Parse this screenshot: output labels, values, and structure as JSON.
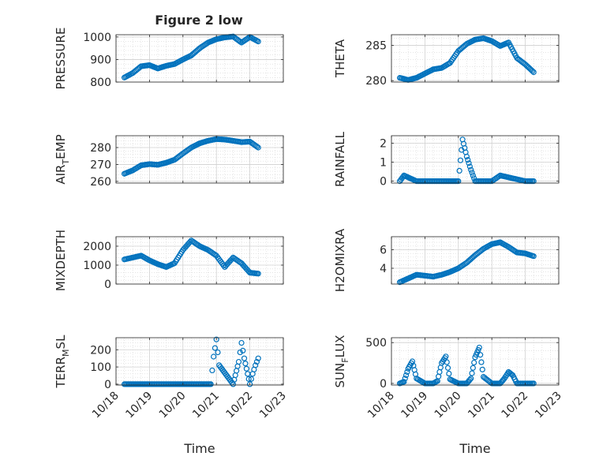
{
  "figure_title": "Figure 2 low",
  "chart_data": [
    {
      "type": "scatter",
      "ylabel": "PRESSURE",
      "ylim": [
        800,
        1010
      ],
      "yticks": [
        800,
        900,
        1000
      ],
      "xlabel": "",
      "grid": true,
      "x": [
        "10/18 6:00",
        "10/18 12:00",
        "10/18 18:00",
        "10/19 0:00",
        "10/19 6:00",
        "10/19 12:00",
        "10/19 18:00",
        "10/20 0:00",
        "10/20 6:00",
        "10/20 12:00",
        "10/20 18:00",
        "10/21 0:00",
        "10/21 6:00",
        "10/21 12:00",
        "10/21 18:00",
        "10/22 0:00",
        "10/22 6:00"
      ],
      "y": [
        820,
        840,
        870,
        875,
        860,
        872,
        880,
        900,
        918,
        950,
        975,
        990,
        998,
        1002,
        975,
        1000,
        980
      ]
    },
    {
      "type": "scatter",
      "ylabel": "THETA",
      "ylim": [
        279.8,
        286.5
      ],
      "yticks": [
        280,
        285
      ],
      "xlabel": "",
      "grid": true,
      "x": [
        "10/18 6:00",
        "10/18 12:00",
        "10/18 18:00",
        "10/19 0:00",
        "10/19 6:00",
        "10/19 12:00",
        "10/19 18:00",
        "10/20 0:00",
        "10/20 6:00",
        "10/20 12:00",
        "10/20 18:00",
        "10/21 0:00",
        "10/21 6:00",
        "10/21 12:00",
        "10/21 18:00",
        "10/22 0:00",
        "10/22 6:00"
      ],
      "y": [
        280.4,
        280.1,
        280.4,
        281.0,
        281.6,
        281.8,
        282.5,
        284.2,
        285.2,
        285.8,
        286.0,
        285.6,
        284.9,
        285.4,
        283.2,
        282.3,
        281.2
      ]
    },
    {
      "type": "scatter",
      "ylabel": "AIR_TEMP",
      "ylim": [
        259,
        287
      ],
      "yticks": [
        260,
        270,
        280
      ],
      "xlabel": "",
      "grid": true,
      "x": [
        "10/18 6:00",
        "10/18 12:00",
        "10/18 18:00",
        "10/19 0:00",
        "10/19 6:00",
        "10/19 12:00",
        "10/19 18:00",
        "10/20 0:00",
        "10/20 6:00",
        "10/20 12:00",
        "10/20 18:00",
        "10/21 0:00",
        "10/21 6:00",
        "10/21 12:00",
        "10/21 18:00",
        "10/22 0:00",
        "10/22 6:00"
      ],
      "y": [
        264.5,
        266.5,
        269.5,
        270.2,
        269.8,
        271.0,
        272.8,
        276.5,
        280.0,
        282.5,
        284.0,
        285.0,
        284.7,
        284.0,
        283.2,
        283.5,
        280.0
      ]
    },
    {
      "type": "scatter",
      "ylabel": "RAINFALL",
      "ylim": [
        -0.1,
        2.4
      ],
      "yticks": [
        0,
        1,
        2
      ],
      "xlabel": "",
      "grid": true,
      "x": [
        "10/18 6:00",
        "10/18 9:00",
        "10/18 18:00",
        "10/19 12:00",
        "10/20 0:00",
        "10/20 3:00",
        "10/20 6:00",
        "10/20 9:00",
        "10/20 12:00",
        "10/21 0:00",
        "10/21 6:00",
        "10/22 0:00",
        "10/22 6:00"
      ],
      "y": [
        0,
        0.3,
        0,
        0,
        0,
        2.2,
        1.3,
        0.6,
        0,
        0,
        0.3,
        0,
        0
      ]
    },
    {
      "type": "scatter",
      "ylabel": "MIXDEPTH",
      "ylim": [
        0,
        2500
      ],
      "yticks": [
        0,
        1000,
        2000
      ],
      "xlabel": "",
      "grid": true,
      "x": [
        "10/18 6:00",
        "10/18 12:00",
        "10/18 18:00",
        "10/19 0:00",
        "10/19 6:00",
        "10/19 12:00",
        "10/19 18:00",
        "10/20 0:00",
        "10/20 6:00",
        "10/20 12:00",
        "10/20 18:00",
        "10/21 0:00",
        "10/21 6:00",
        "10/21 12:00",
        "10/21 18:00",
        "10/22 0:00",
        "10/22 6:00"
      ],
      "y": [
        1300,
        1400,
        1500,
        1250,
        1050,
        900,
        1100,
        1800,
        2300,
        2000,
        1800,
        1500,
        900,
        1400,
        1100,
        600,
        550
      ]
    },
    {
      "type": "scatter",
      "ylabel": "H2OMIXRA",
      "ylim": [
        2.3,
        7.4
      ],
      "yticks": [
        4,
        6
      ],
      "xlabel": "",
      "grid": true,
      "x": [
        "10/18 6:00",
        "10/18 12:00",
        "10/18 18:00",
        "10/19 0:00",
        "10/19 6:00",
        "10/19 12:00",
        "10/19 18:00",
        "10/20 0:00",
        "10/20 6:00",
        "10/20 12:00",
        "10/20 18:00",
        "10/21 0:00",
        "10/21 6:00",
        "10/21 12:00",
        "10/21 18:00",
        "10/22 0:00",
        "10/22 6:00"
      ],
      "y": [
        2.5,
        2.9,
        3.3,
        3.2,
        3.1,
        3.3,
        3.6,
        4.0,
        4.6,
        5.4,
        6.1,
        6.6,
        6.8,
        6.3,
        5.7,
        5.6,
        5.3
      ]
    },
    {
      "type": "scatter",
      "ylabel": "TERR_MSL",
      "ylim": [
        -5,
        270
      ],
      "yticks": [
        0,
        100,
        200
      ],
      "xlabel": "Time",
      "grid": true,
      "x_tick_labels": [
        "10/18",
        "10/19",
        "10/20",
        "10/21",
        "10/22",
        "10/23"
      ],
      "x": [
        "10/18 6:00",
        "10/19 0:00",
        "10/19 12:00",
        "10/20 0:00",
        "10/20 12:00",
        "10/20 20:00",
        "10/20 22:00",
        "10/21 0:00",
        "10/21 2:00",
        "10/21 12:00",
        "10/21 16:00",
        "10/21 18:00",
        "10/21 20:00",
        "10/22 0:00",
        "10/22 2:00",
        "10/22 4:00",
        "10/22 6:00"
      ],
      "y": [
        0,
        0,
        0,
        0,
        0,
        0,
        160,
        260,
        110,
        0,
        130,
        240,
        150,
        0,
        60,
        110,
        150
      ]
    },
    {
      "type": "scatter",
      "ylabel": "SUN_FLUX",
      "ylim": [
        -20,
        560
      ],
      "yticks": [
        0,
        500
      ],
      "xlabel": "Time",
      "grid": true,
      "x_tick_labels": [
        "10/18",
        "10/19",
        "10/20",
        "10/21",
        "10/22",
        "10/23"
      ],
      "x": [
        "10/18 6:00",
        "10/18 9:00",
        "10/18 12:00",
        "10/18 15:00",
        "10/18 18:00",
        "10/19 0:00",
        "10/19 6:00",
        "10/19 9:00",
        "10/19 12:00",
        "10/19 15:00",
        "10/19 18:00",
        "10/20 0:00",
        "10/20 6:00",
        "10/20 9:00",
        "10/20 12:00",
        "10/20 15:00",
        "10/20 18:00",
        "10/21 0:00",
        "10/21 6:00",
        "10/21 9:00",
        "10/21 12:00",
        "10/21 15:00",
        "10/21 18:00",
        "10/22 0:00",
        "10/22 6:00"
      ],
      "y": [
        0,
        20,
        180,
        270,
        60,
        0,
        0,
        30,
        250,
        330,
        50,
        0,
        0,
        60,
        320,
        440,
        80,
        0,
        0,
        60,
        140,
        100,
        0,
        0,
        0
      ]
    }
  ]
}
